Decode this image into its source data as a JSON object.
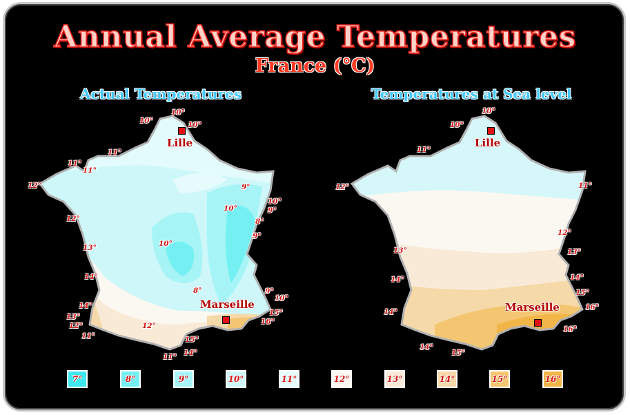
{
  "title": "Annual Average Temperatures",
  "subtitle": "France (°C)",
  "panels": {
    "actual": {
      "title": "Actual Temperatures",
      "labels": [
        "10°",
        "10°",
        "10°",
        "11°",
        "11°",
        "11°",
        "12°",
        "9°",
        "10°",
        "10°",
        "9°",
        "8°",
        "12°",
        "9°",
        "13°",
        "10°",
        "14°",
        "8°",
        "9°",
        "10°",
        "14°",
        "15°",
        "13°",
        "16°",
        "12°",
        "12°",
        "11°",
        "15°",
        "14°",
        "11°"
      ]
    },
    "sea": {
      "title": "Temperatures at Sea level",
      "labels": [
        "10°",
        "10°",
        "11°",
        "12°",
        "11°",
        "12°",
        "13°",
        "13°",
        "14°",
        "14°",
        "15°",
        "14°",
        "16°",
        "16°",
        "14°",
        "15°"
      ]
    }
  },
  "cities": {
    "lille": "Lille",
    "marseille": "Marseille"
  },
  "legend": [
    {
      "label": "7°",
      "color": "#3ee8ee"
    },
    {
      "label": "8°",
      "color": "#74f0f2"
    },
    {
      "label": "9°",
      "color": "#a6f4f6"
    },
    {
      "label": "10°",
      "color": "#cdf7f9"
    },
    {
      "label": "11°",
      "color": "#e6fbfc"
    },
    {
      "label": "12°",
      "color": "#fbf8f2"
    },
    {
      "label": "13°",
      "color": "#f9ead7"
    },
    {
      "label": "14°",
      "color": "#f6d9a8"
    },
    {
      "label": "15°",
      "color": "#f4c672"
    },
    {
      "label": "16°",
      "color": "#f2b648"
    }
  ]
}
